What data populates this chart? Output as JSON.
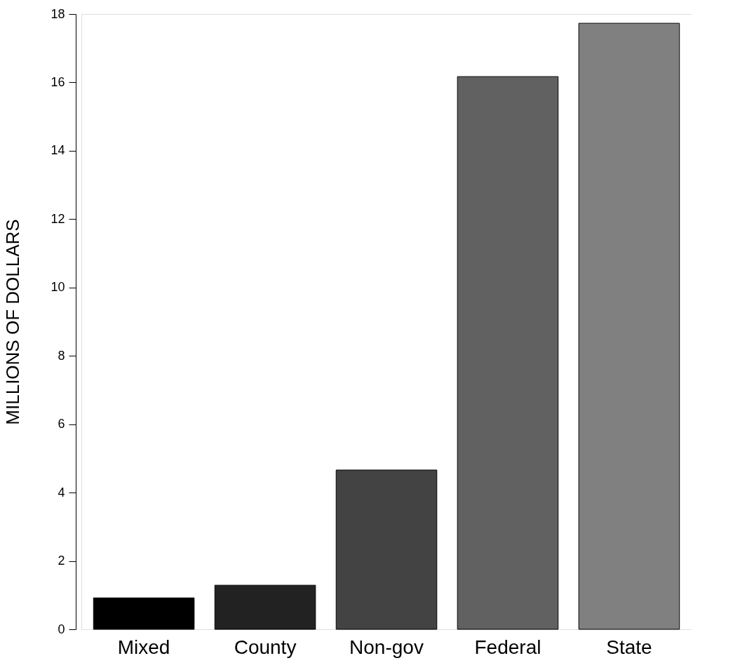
{
  "chart_data": {
    "type": "bar",
    "ylabel": "MILLIONS OF DOLLARS",
    "categories": [
      "Mixed",
      "County",
      "Non-gov",
      "Federal",
      "State"
    ],
    "values": [
      0.92,
      1.29,
      4.66,
      16.17,
      17.73
    ],
    "colors": [
      "#000000",
      "#222222",
      "#434343",
      "#616161",
      "#808080"
    ],
    "ylim": [
      0,
      18
    ],
    "yticks": [
      0,
      2,
      4,
      6,
      8,
      10,
      12,
      14,
      16,
      18
    ],
    "grid": false,
    "legend": false
  }
}
